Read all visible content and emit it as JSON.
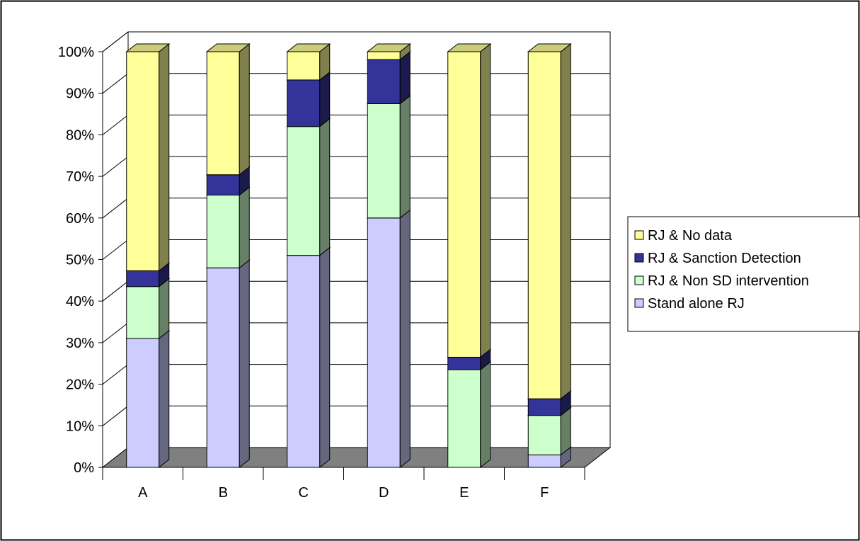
{
  "chart_data": {
    "type": "bar",
    "stacked": true,
    "normalized_percent": true,
    "three_d": true,
    "categories": [
      "A",
      "B",
      "C",
      "D",
      "E",
      "F"
    ],
    "series": [
      {
        "name": "Stand alone RJ",
        "color": "#CCCCFF",
        "values": [
          31,
          48,
          51,
          60,
          0,
          3
        ]
      },
      {
        "name": "RJ & Non SD intervention",
        "color": "#CCFFCC",
        "values": [
          12.5,
          17.5,
          31,
          27.5,
          23.5,
          9.5
        ]
      },
      {
        "name": "RJ & Sanction Detection",
        "color": "#333399",
        "values": [
          3.8,
          4.9,
          11.2,
          10.6,
          3,
          4
        ]
      },
      {
        "name": "RJ & No data",
        "color": "#FFFF99",
        "values": [
          52.7,
          29.6,
          6.8,
          1.9,
          73.5,
          83.5
        ]
      }
    ],
    "y_ticks": [
      "0%",
      "10%",
      "20%",
      "30%",
      "40%",
      "50%",
      "60%",
      "70%",
      "80%",
      "90%",
      "100%"
    ],
    "ylim": [
      0,
      100
    ],
    "grid": true,
    "legend_position": "right",
    "legend_order": [
      "RJ & No data",
      "RJ & Sanction Detection",
      "RJ & Non SD intervention",
      "Stand alone RJ"
    ],
    "floor_color": "#808080",
    "title": "",
    "xlabel": "",
    "ylabel": ""
  }
}
